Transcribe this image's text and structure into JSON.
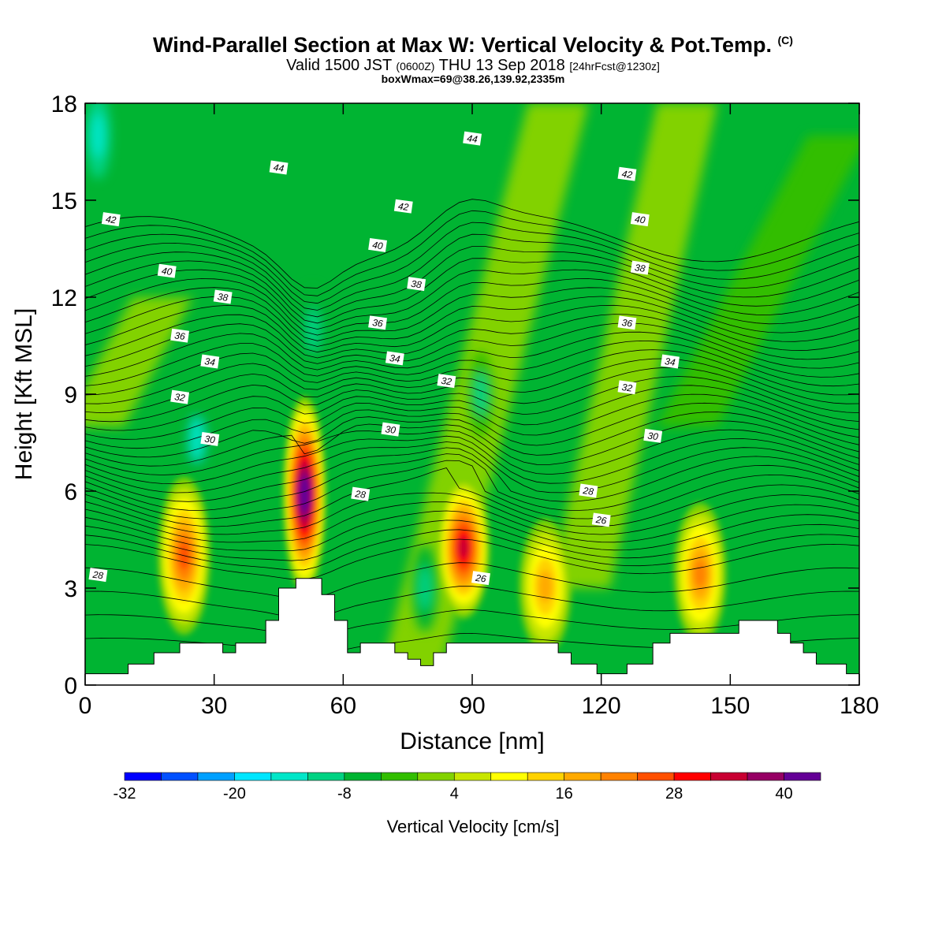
{
  "title": "Wind-Parallel Section at Max W: Vertical Velocity & Pot.Temp.",
  "title_mark": "(C)",
  "subtitle_prefix": "Valid 1500 JST",
  "subtitle_utc": "(0600Z)",
  "subtitle_date": "THU 13 Sep 2018",
  "subtitle_fcst": "[24hrFcst@1230z]",
  "subtitle2": "boxWmax=69@38.26,139.92,2335m",
  "chart_data": {
    "type": "heatmap",
    "xlabel": "Distance [nm]",
    "ylabel": "Height [Kft MSL]",
    "xlim": [
      0,
      180
    ],
    "ylim": [
      0,
      18
    ],
    "x_ticks": [
      0,
      30,
      60,
      90,
      120,
      150,
      180
    ],
    "y_ticks": [
      0,
      3,
      6,
      9,
      12,
      15,
      18
    ],
    "colorbar": {
      "label": "Vertical Velocity [cm/s]",
      "tick_labels": [
        "-32",
        "-20",
        "-8",
        "4",
        "16",
        "28",
        "40"
      ],
      "colors": [
        "#0000ff",
        "#0050ff",
        "#00a0ff",
        "#00e6ff",
        "#00e6c8",
        "#00d282",
        "#00b432",
        "#32be00",
        "#82d200",
        "#c8e600",
        "#ffff00",
        "#ffd200",
        "#ffaa00",
        "#ff8200",
        "#ff5000",
        "#ff0000",
        "#c80032",
        "#960064",
        "#640096"
      ]
    },
    "updrafts": [
      {
        "x": 23,
        "base": 2.0,
        "top": 6.0,
        "peak": 22
      },
      {
        "x": 51,
        "base": 3.3,
        "top": 8.5,
        "peak": 45
      },
      {
        "x": 88,
        "base": 2.5,
        "top": 6.0,
        "peak": 30
      },
      {
        "x": 107,
        "base": 1.4,
        "top": 4.7,
        "peak": 16
      },
      {
        "x": 143,
        "base": 1.7,
        "top": 5.2,
        "peak": 20
      }
    ],
    "downdrafts": [
      {
        "x": 26,
        "y": 7.6,
        "value": -14
      },
      {
        "x": 53,
        "y": 11.0,
        "value": -12
      },
      {
        "x": 92,
        "y": 9.0,
        "value": -10
      },
      {
        "x": 3,
        "y": 17.0,
        "value": -16
      },
      {
        "x": 79,
        "y": 3.0,
        "value": -12
      }
    ],
    "terrain": [
      [
        0,
        0.35
      ],
      [
        10,
        0.35
      ],
      [
        10,
        0.65
      ],
      [
        16,
        0.65
      ],
      [
        16,
        1.0
      ],
      [
        22,
        1.0
      ],
      [
        22,
        1.3
      ],
      [
        32,
        1.3
      ],
      [
        32,
        1.0
      ],
      [
        35,
        1.0
      ],
      [
        35,
        1.3
      ],
      [
        42,
        1.3
      ],
      [
        42,
        2.0
      ],
      [
        45,
        2.0
      ],
      [
        45,
        3.0
      ],
      [
        49,
        3.0
      ],
      [
        49,
        3.3
      ],
      [
        55,
        3.3
      ],
      [
        55,
        2.8
      ],
      [
        58,
        2.8
      ],
      [
        58,
        2.0
      ],
      [
        61,
        2.0
      ],
      [
        61,
        1.0
      ],
      [
        64,
        1.0
      ],
      [
        64,
        1.3
      ],
      [
        72,
        1.3
      ],
      [
        72,
        1.0
      ],
      [
        75,
        1.0
      ],
      [
        75,
        0.8
      ],
      [
        78,
        0.8
      ],
      [
        78,
        0.6
      ],
      [
        81,
        0.6
      ],
      [
        81,
        1.0
      ],
      [
        84,
        1.0
      ],
      [
        84,
        1.3
      ],
      [
        110,
        1.3
      ],
      [
        110,
        1.0
      ],
      [
        113,
        1.0
      ],
      [
        113,
        0.65
      ],
      [
        119,
        0.65
      ],
      [
        119,
        0.35
      ],
      [
        126,
        0.35
      ],
      [
        126,
        0.65
      ],
      [
        132,
        0.65
      ],
      [
        132,
        1.3
      ],
      [
        136,
        1.3
      ],
      [
        136,
        1.6
      ],
      [
        152,
        1.6
      ],
      [
        152,
        2.0
      ],
      [
        161,
        2.0
      ],
      [
        161,
        1.6
      ],
      [
        164,
        1.6
      ],
      [
        164,
        1.3
      ],
      [
        167,
        1.3
      ],
      [
        167,
        1.0
      ],
      [
        170,
        1.0
      ],
      [
        170,
        0.65
      ],
      [
        177,
        0.65
      ],
      [
        177,
        0.35
      ],
      [
        180,
        0.35
      ]
    ],
    "theta_contour_labels": [
      {
        "text": "44",
        "x": 45,
        "y": 16.0
      },
      {
        "text": "44",
        "x": 90,
        "y": 16.9
      },
      {
        "text": "42",
        "x": 6,
        "y": 14.4
      },
      {
        "text": "42",
        "x": 74,
        "y": 14.8
      },
      {
        "text": "42",
        "x": 126,
        "y": 15.8
      },
      {
        "text": "40",
        "x": 19,
        "y": 12.8
      },
      {
        "text": "40",
        "x": 68,
        "y": 13.6
      },
      {
        "text": "40",
        "x": 129,
        "y": 14.4
      },
      {
        "text": "38",
        "x": 32,
        "y": 12.0
      },
      {
        "text": "38",
        "x": 77,
        "y": 12.4
      },
      {
        "text": "38",
        "x": 129,
        "y": 12.9
      },
      {
        "text": "36",
        "x": 22,
        "y": 10.8
      },
      {
        "text": "36",
        "x": 68,
        "y": 11.2
      },
      {
        "text": "36",
        "x": 126,
        "y": 11.2
      },
      {
        "text": "34",
        "x": 29,
        "y": 10.0
      },
      {
        "text": "34",
        "x": 72,
        "y": 10.1
      },
      {
        "text": "34",
        "x": 136,
        "y": 10.0
      },
      {
        "text": "32",
        "x": 22,
        "y": 8.9
      },
      {
        "text": "32",
        "x": 84,
        "y": 9.4
      },
      {
        "text": "32",
        "x": 126,
        "y": 9.2
      },
      {
        "text": "30",
        "x": 29,
        "y": 7.6
      },
      {
        "text": "30",
        "x": 71,
        "y": 7.9
      },
      {
        "text": "30",
        "x": 132,
        "y": 7.7
      },
      {
        "text": "28",
        "x": 64,
        "y": 5.9
      },
      {
        "text": "28",
        "x": 117,
        "y": 6.0
      },
      {
        "text": "26",
        "x": 120,
        "y": 5.1
      },
      {
        "text": "26",
        "x": 92,
        "y": 3.3
      },
      {
        "text": "28",
        "x": 3,
        "y": 3.4
      }
    ]
  }
}
